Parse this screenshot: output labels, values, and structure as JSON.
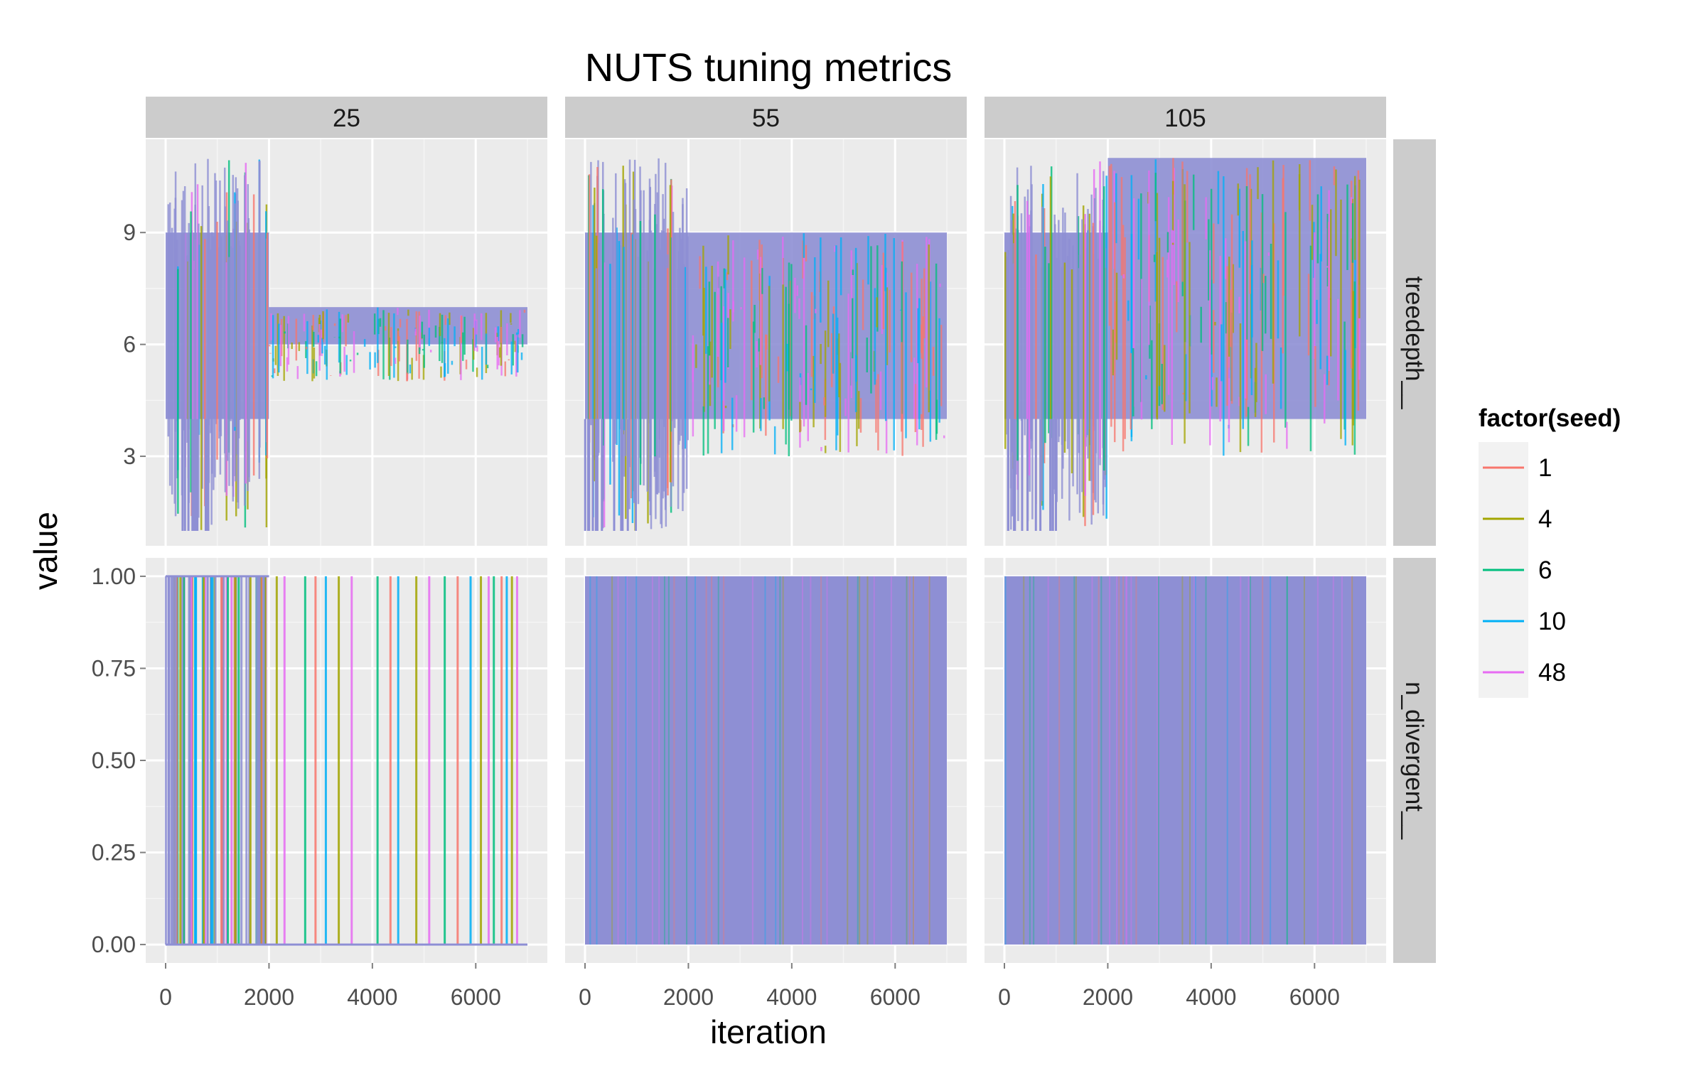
{
  "chart_data": {
    "type": "line",
    "title": "NUTS tuning metrics",
    "xlabel": "iteration",
    "ylabel": "value",
    "facet_columns": [
      "25",
      "55",
      "105"
    ],
    "facet_rows": [
      "treedepth__",
      "n_divergent__"
    ],
    "xlim": [
      0,
      7000
    ],
    "x_ticks": [
      0,
      2000,
      4000,
      6000
    ],
    "x_tick_labels": [
      "0",
      "2000",
      "4000",
      "6000"
    ],
    "rows": [
      {
        "name": "treedepth__",
        "ylim": [
          0.6,
          11.5
        ],
        "y_ticks": [
          3,
          6,
          9
        ],
        "y_tick_labels": [
          "3",
          "6",
          "9"
        ]
      },
      {
        "name": "n_divergent__",
        "ylim": [
          -0.05,
          1.05
        ],
        "y_ticks": [
          0,
          0.25,
          0.5,
          0.75,
          1.0
        ],
        "y_tick_labels": [
          "0.00",
          "0.25",
          "0.50",
          "0.75",
          "1.00"
        ]
      }
    ],
    "legend": {
      "title": "factor(seed)",
      "position": "right",
      "entries": [
        "1",
        "4",
        "6",
        "10",
        "48"
      ]
    },
    "series_colors": {
      "1": "#F8766D",
      "4": "#A3A500",
      "6": "#00BF7D",
      "10": "#00B0F6",
      "48": "#E76BF3"
    },
    "overlay_color": "#8e8fd4",
    "panel_background": "#ebebeb",
    "strip_background": "#cccccc",
    "grid": true,
    "panels": {
      "25": {
        "treedepth__": {
          "warmup_end": 2000,
          "warmup_range": [
            1,
            11
          ],
          "sampling_range": [
            5,
            7
          ],
          "run_end": 7000
        },
        "n_divergent__": {
          "warmup_end": 2000,
          "sampling_spikes": [
            2150,
            2300,
            2700,
            2900,
            3100,
            3350,
            3600,
            4100,
            4350,
            4500,
            4850,
            5100,
            5400,
            5650,
            5900,
            6100,
            6250,
            6350,
            6500,
            6600,
            6700,
            6800
          ],
          "run_end": 7000
        }
      },
      "55": {
        "treedepth__": {
          "warmup_end": 2000,
          "warmup_range": [
            1,
            11
          ],
          "sampling_range": [
            3,
            9
          ],
          "run_end": 7000
        },
        "n_divergent__": {
          "filled": [
            0,
            1
          ],
          "run_end": 7000
        }
      },
      "105": {
        "treedepth__": {
          "warmup_end": 2000,
          "warmup_range": [
            1,
            11
          ],
          "sampling_range": [
            3,
            11
          ],
          "run_end": 7000
        },
        "n_divergent__": {
          "filled": [
            0,
            1
          ],
          "run_end": 7000
        }
      }
    }
  }
}
